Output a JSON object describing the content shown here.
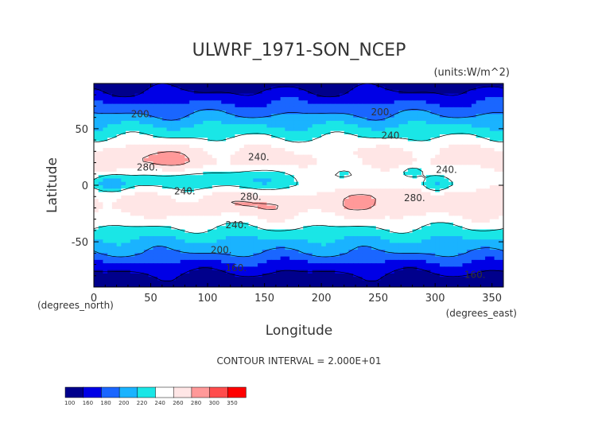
{
  "chart_data": {
    "type": "heatmap",
    "title": "ULWRF_1971-SON_NCEP",
    "units_label": "(units:W/m^2)",
    "xlabel": "Longitude",
    "ylabel": "Latitude",
    "x_units_label": "(degrees_east)",
    "y_units_label": "(degrees_north)",
    "xlim": [
      0,
      360
    ],
    "ylim": [
      -90,
      90
    ],
    "x_ticks": [
      0,
      50,
      100,
      150,
      200,
      250,
      300,
      350
    ],
    "y_ticks": [
      50,
      0,
      -50
    ],
    "contour_interval_text": "CONTOUR INTERVAL = 2.000E+01",
    "contour_labels": [
      {
        "text": "200.",
        "lon": 42,
        "lat": 60
      },
      {
        "text": "200.",
        "lon": 253,
        "lat": 62
      },
      {
        "text": "240.",
        "lon": 262,
        "lat": 41
      },
      {
        "text": "240.",
        "lon": 145,
        "lat": 22
      },
      {
        "text": "280.",
        "lon": 47,
        "lat": 13
      },
      {
        "text": "240.",
        "lon": 310,
        "lat": 11
      },
      {
        "text": "240.",
        "lon": 80,
        "lat": -8
      },
      {
        "text": "280.",
        "lon": 138,
        "lat": -13
      },
      {
        "text": "280.",
        "lon": 282,
        "lat": -14
      },
      {
        "text": "240.",
        "lon": 125,
        "lat": -38
      },
      {
        "text": "200.",
        "lon": 112,
        "lat": -60
      },
      {
        "text": "160.",
        "lon": 125,
        "lat": -76
      },
      {
        "text": "160.",
        "lon": 335,
        "lat": -82
      }
    ],
    "colorbar": {
      "labels": [
        "100",
        "160",
        "180",
        "200",
        "220",
        "240",
        "260",
        "280",
        "300",
        "350"
      ],
      "colors": [
        "#00008c",
        "#0000e6",
        "#1a66ff",
        "#1ab3ff",
        "#1ae6e6",
        "#ffffff",
        "#ffe6e6",
        "#ff9999",
        "#ff4d4d",
        "#ff0000"
      ]
    },
    "latitude_band_values": [
      {
        "lat": 90,
        "value": 150
      },
      {
        "lat": 80,
        "value": 165
      },
      {
        "lat": 70,
        "value": 185
      },
      {
        "lat": 60,
        "value": 205
      },
      {
        "lat": 50,
        "value": 225
      },
      {
        "lat": 40,
        "value": 245
      },
      {
        "lat": 30,
        "value": 265
      },
      {
        "lat": 20,
        "value": 268
      },
      {
        "lat": 10,
        "value": 250
      },
      {
        "lat": 0,
        "value": 245
      },
      {
        "lat": -10,
        "value": 262
      },
      {
        "lat": -20,
        "value": 270
      },
      {
        "lat": -30,
        "value": 255
      },
      {
        "lat": -40,
        "value": 235
      },
      {
        "lat": -50,
        "value": 215
      },
      {
        "lat": -60,
        "value": 200
      },
      {
        "lat": -70,
        "value": 175
      },
      {
        "lat": -80,
        "value": 155
      },
      {
        "lat": -90,
        "value": 145
      }
    ]
  }
}
